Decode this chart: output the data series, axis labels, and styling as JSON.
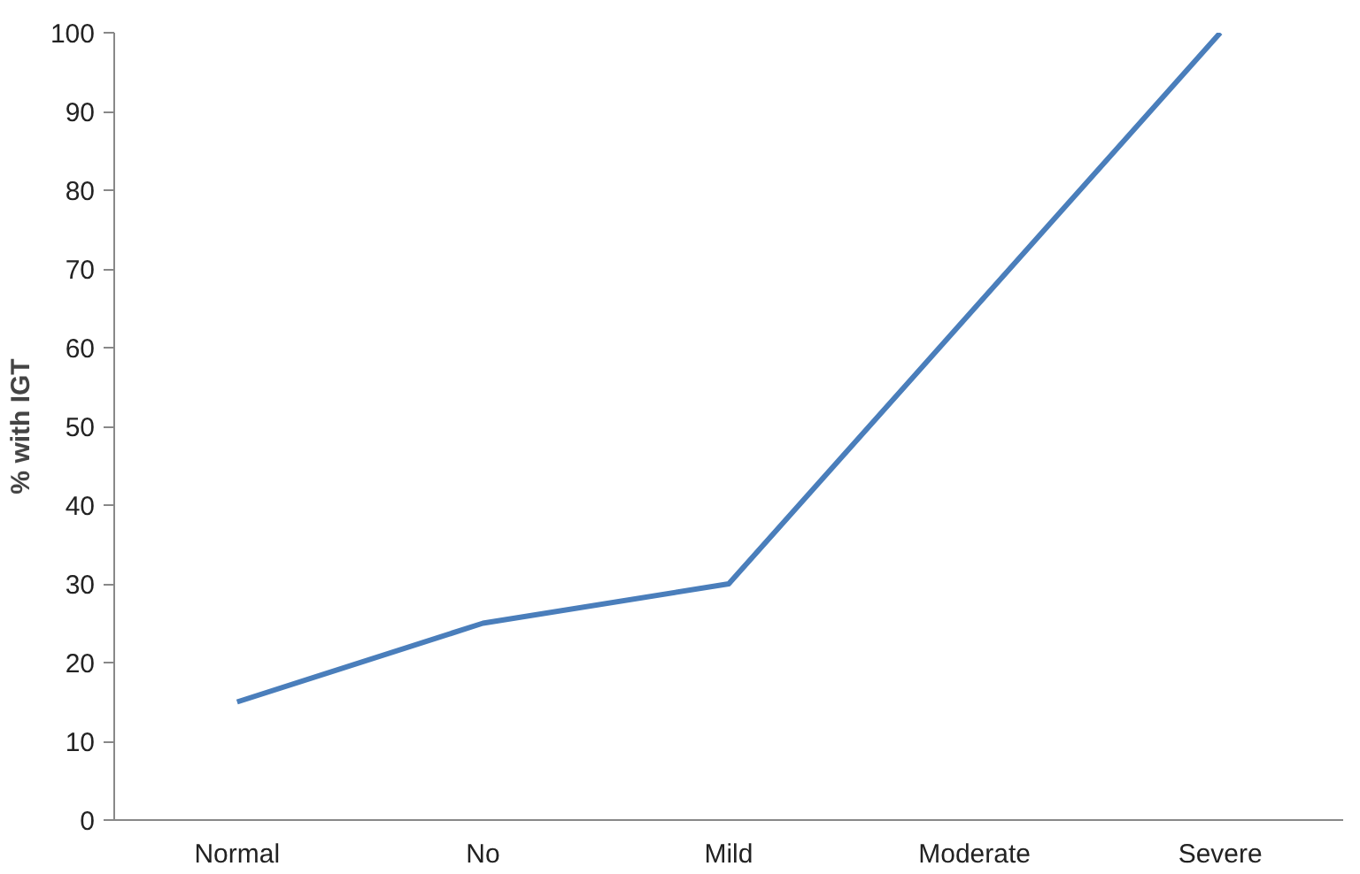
{
  "chart_data": {
    "type": "line",
    "ylabel": "% with IGT",
    "categories": [
      "Normal",
      "No",
      "Mild",
      "Moderate",
      "Severe"
    ],
    "series": [
      {
        "color": "#4a7ebb",
        "values": [
          15,
          25,
          30,
          65,
          100
        ]
      }
    ],
    "ylim": [
      0,
      100
    ],
    "yticks": [
      0,
      10,
      20,
      30,
      40,
      50,
      60,
      70,
      80,
      90,
      100
    ],
    "grid": false,
    "marker": "none",
    "line_style": "solid"
  }
}
